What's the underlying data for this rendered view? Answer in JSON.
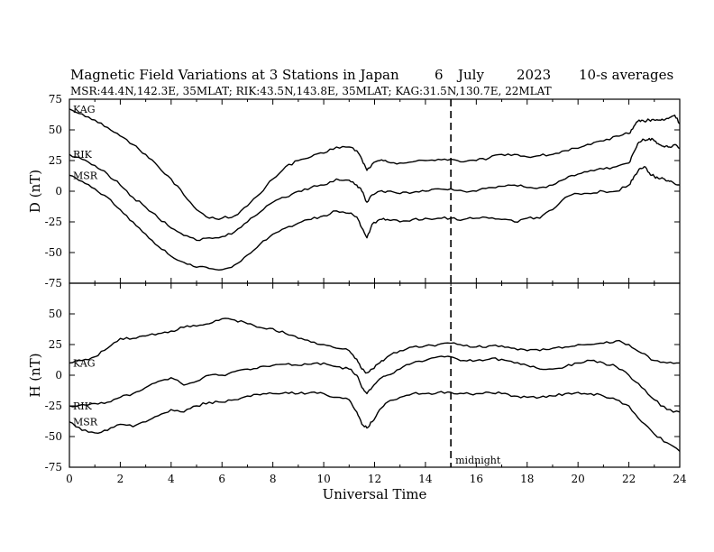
{
  "header": {
    "title_main": "Magnetic Field Variations at 3 Stations in Japan",
    "date_day": "6",
    "date_month": "July",
    "date_year": "2023",
    "averaging": "10-s averages",
    "subtitle": "MSR:44.4N,142.3E, 35MLAT;  RIK:43.5N,143.8E, 35MLAT;  KAG:31.5N,130.7E, 22MLAT"
  },
  "chart_data": [
    {
      "type": "line",
      "panel": "top",
      "ylabel": "D (nT)",
      "xlabel": "",
      "xlim": [
        0,
        24
      ],
      "ylim": [
        -75,
        75
      ],
      "yticks": [
        75,
        50,
        25,
        0,
        -25,
        -50,
        -75
      ],
      "series": [
        {
          "name": "KAG",
          "x": [
            0,
            0.5,
            1,
            1.5,
            2,
            2.5,
            3,
            3.5,
            4,
            4.5,
            5,
            5.5,
            6,
            6.5,
            7,
            7.5,
            8,
            8.5,
            9,
            9.5,
            10,
            10.5,
            11,
            11.3,
            11.5,
            11.7,
            11.9,
            12.2,
            12.5,
            13,
            13.5,
            14,
            14.5,
            15,
            15.5,
            16,
            16.5,
            17,
            17.5,
            18,
            18.5,
            19,
            19.5,
            20,
            20.5,
            21,
            21.5,
            22,
            22.2,
            22.4,
            22.6,
            22.8,
            23,
            23.2,
            23.4,
            23.6,
            23.8,
            24
          ],
          "y": [
            67,
            63,
            58,
            52,
            45,
            38,
            30,
            20,
            10,
            -3,
            -15,
            -22,
            -22,
            -20,
            -12,
            -2,
            10,
            20,
            25,
            28,
            31,
            36,
            36,
            33,
            26,
            17,
            22,
            25,
            24,
            23,
            24,
            25,
            26,
            26,
            24,
            25,
            27,
            30,
            30,
            28,
            29,
            30,
            33,
            35,
            38,
            41,
            45,
            47,
            53,
            58,
            57,
            58,
            58,
            58,
            58,
            60,
            62,
            55
          ]
        },
        {
          "name": "RIK",
          "x": [
            0,
            0.5,
            1,
            1.5,
            2,
            2.5,
            3,
            3.5,
            4,
            4.5,
            5,
            5.5,
            6,
            6.5,
            7,
            7.5,
            8,
            8.5,
            9,
            9.5,
            10,
            10.5,
            11,
            11.3,
            11.5,
            11.7,
            11.9,
            12.2,
            12.5,
            13,
            13.5,
            14,
            14.5,
            15,
            15.5,
            16,
            16.5,
            17,
            17.5,
            18,
            18.5,
            19,
            19.5,
            20,
            20.5,
            21,
            21.5,
            22,
            22.2,
            22.4,
            22.6,
            22.8,
            23,
            23.2,
            23.4,
            23.6,
            23.8,
            24
          ],
          "y": [
            30,
            26,
            21,
            14,
            5,
            -5,
            -13,
            -22,
            -30,
            -36,
            -40,
            -38,
            -37,
            -33,
            -25,
            -17,
            -9,
            -5,
            0,
            3,
            5,
            10,
            9,
            5,
            0,
            -9,
            -3,
            0,
            0,
            -2,
            -1,
            0,
            2,
            2,
            0,
            0,
            3,
            4,
            5,
            3,
            3,
            5,
            10,
            14,
            17,
            18,
            20,
            23,
            32,
            40,
            42,
            43,
            41,
            38,
            36,
            36,
            38,
            35
          ]
        },
        {
          "name": "MSR",
          "x": [
            0,
            0.5,
            1,
            1.5,
            2,
            2.5,
            3,
            3.5,
            4,
            4.5,
            5,
            5.5,
            6,
            6.5,
            7,
            7.5,
            8,
            8.5,
            9,
            9.5,
            10,
            10.5,
            11,
            11.3,
            11.5,
            11.7,
            11.9,
            12.2,
            12.5,
            13,
            13.5,
            14,
            14.5,
            15,
            15.5,
            16,
            16.5,
            17,
            17.5,
            18,
            18.5,
            19,
            19.5,
            20,
            20.5,
            21,
            21.5,
            22,
            22.2,
            22.4,
            22.6,
            22.8,
            23,
            23.2,
            23.4,
            23.6,
            23.8,
            24
          ],
          "y": [
            13,
            8,
            2,
            -5,
            -15,
            -25,
            -35,
            -45,
            -53,
            -58,
            -62,
            -63,
            -64,
            -60,
            -52,
            -43,
            -35,
            -30,
            -26,
            -23,
            -20,
            -16,
            -18,
            -21,
            -30,
            -38,
            -27,
            -23,
            -23,
            -25,
            -23,
            -22,
            -22,
            -22,
            -23,
            -22,
            -22,
            -23,
            -25,
            -22,
            -22,
            -15,
            -5,
            -2,
            -2,
            0,
            0,
            5,
            12,
            18,
            20,
            15,
            12,
            10,
            10,
            8,
            6,
            5
          ]
        }
      ]
    },
    {
      "type": "line",
      "panel": "bottom",
      "ylabel": "H (nT)",
      "xlabel": "Universal Time",
      "xlim": [
        0,
        24
      ],
      "ylim": [
        -75,
        75
      ],
      "yticks": [
        50,
        25,
        0,
        -25,
        -50,
        -75
      ],
      "xticks": [
        0,
        2,
        4,
        6,
        8,
        10,
        12,
        14,
        16,
        18,
        20,
        22,
        24
      ],
      "series": [
        {
          "name": "KAG",
          "x": [
            0,
            0.5,
            1,
            1.5,
            2,
            2.5,
            3,
            3.5,
            4,
            4.5,
            5,
            5.5,
            6,
            6.5,
            7,
            7.5,
            8,
            8.5,
            9,
            9.5,
            10,
            10.5,
            11,
            11.3,
            11.5,
            11.7,
            11.9,
            12.2,
            12.5,
            13,
            13.5,
            14,
            14.5,
            15,
            15.5,
            16,
            16.5,
            17,
            17.5,
            18,
            18.5,
            19,
            19.5,
            20,
            20.5,
            21,
            21.5,
            22,
            22.5,
            23,
            23.5,
            24
          ],
          "y": [
            10,
            12,
            15,
            22,
            30,
            30,
            32,
            34,
            36,
            39,
            40,
            42,
            46,
            45,
            42,
            39,
            38,
            34,
            30,
            27,
            25,
            22,
            20,
            13,
            5,
            2,
            5,
            10,
            15,
            20,
            23,
            24,
            25,
            26,
            24,
            23,
            24,
            24,
            22,
            20,
            20,
            22,
            23,
            25,
            25,
            26,
            28,
            25,
            18,
            12,
            10,
            10
          ]
        },
        {
          "name": "RIK",
          "x": [
            0,
            0.5,
            1,
            1.5,
            2,
            2.5,
            3,
            3.5,
            4,
            4.5,
            5,
            5.5,
            6,
            6.5,
            7,
            7.5,
            8,
            8.5,
            9,
            9.5,
            10,
            10.5,
            11,
            11.3,
            11.5,
            11.7,
            11.9,
            12.2,
            12.5,
            13,
            13.5,
            14,
            14.5,
            15,
            15.5,
            16,
            16.5,
            17,
            17.5,
            18,
            18.5,
            19,
            19.5,
            20,
            20.5,
            21,
            21.5,
            22,
            22.5,
            23,
            23.5,
            24
          ],
          "y": [
            -25,
            -24,
            -23,
            -22,
            -18,
            -15,
            -10,
            -5,
            -2,
            -8,
            -5,
            0,
            0,
            3,
            5,
            7,
            8,
            9,
            8,
            9,
            10,
            7,
            5,
            0,
            -10,
            -15,
            -10,
            -3,
            0,
            5,
            10,
            12,
            15,
            15,
            12,
            12,
            13,
            13,
            10,
            8,
            5,
            5,
            7,
            10,
            12,
            10,
            7,
            0,
            -10,
            -20,
            -28,
            -30
          ]
        },
        {
          "name": "MSR",
          "x": [
            0,
            0.5,
            1,
            1.5,
            2,
            2.5,
            3,
            3.5,
            4,
            4.5,
            5,
            5.5,
            6,
            6.5,
            7,
            7.5,
            8,
            8.5,
            9,
            9.5,
            10,
            10.5,
            11,
            11.3,
            11.5,
            11.7,
            11.9,
            12.2,
            12.5,
            13,
            13.5,
            14,
            14.5,
            15,
            15.5,
            16,
            16.5,
            17,
            17.5,
            18,
            18.5,
            19,
            19.5,
            20,
            20.5,
            21,
            21.5,
            22,
            22.5,
            23,
            23.5,
            24
          ],
          "y": [
            -38,
            -45,
            -47,
            -45,
            -40,
            -42,
            -38,
            -33,
            -28,
            -30,
            -25,
            -22,
            -22,
            -20,
            -17,
            -16,
            -15,
            -14,
            -15,
            -14,
            -15,
            -18,
            -20,
            -30,
            -40,
            -43,
            -38,
            -28,
            -22,
            -18,
            -15,
            -15,
            -14,
            -14,
            -15,
            -15,
            -14,
            -15,
            -17,
            -18,
            -18,
            -17,
            -15,
            -14,
            -15,
            -17,
            -20,
            -25,
            -38,
            -48,
            -55,
            -62
          ]
        }
      ]
    }
  ],
  "annotations": {
    "midnight_label": "midnight",
    "midnight_x": 15
  }
}
